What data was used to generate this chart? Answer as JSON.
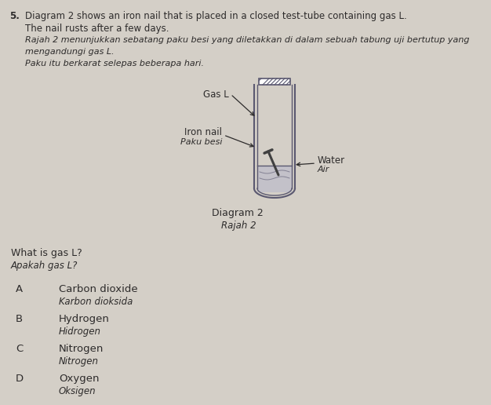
{
  "background_color": "#d4cfc7",
  "text_color": "#2d2b2b",
  "line_color": "#5a5870",
  "question_number": "5.",
  "question_line1": "Diagram 2 shows an iron nail that is placed in a closed test-tube containing gas L.",
  "question_line2": "The nail rusts after a few days.",
  "question_line3": "Rajah 2 menunjukkan sebatang paku besi yang diletakkan di dalam sebuah tabung uji bertutup yang",
  "question_line4": "mengandungi gas L.",
  "question_line5": "Paku itu berkarat selepas beberapa hari.",
  "label_gas_L": "Gas L",
  "label_iron_nail": "Iron nail",
  "label_paku_besi": "Paku besi",
  "label_water": "Water",
  "label_air": "Air",
  "label_diagram": "Diagram 2",
  "label_rajah": "Rajah 2",
  "question_what": "What is gas L?",
  "question_apakah": "Apakah gas L?",
  "options": [
    {
      "letter": "A",
      "english": "Carbon dioxide",
      "malay": "Karbon dioksida"
    },
    {
      "letter": "B",
      "english": "Hydrogen",
      "malay": "Hidrogen"
    },
    {
      "letter": "C",
      "english": "Nitrogen",
      "malay": "Nitrogen"
    },
    {
      "letter": "D",
      "english": "Oxygen",
      "malay": "Oksigen"
    }
  ]
}
